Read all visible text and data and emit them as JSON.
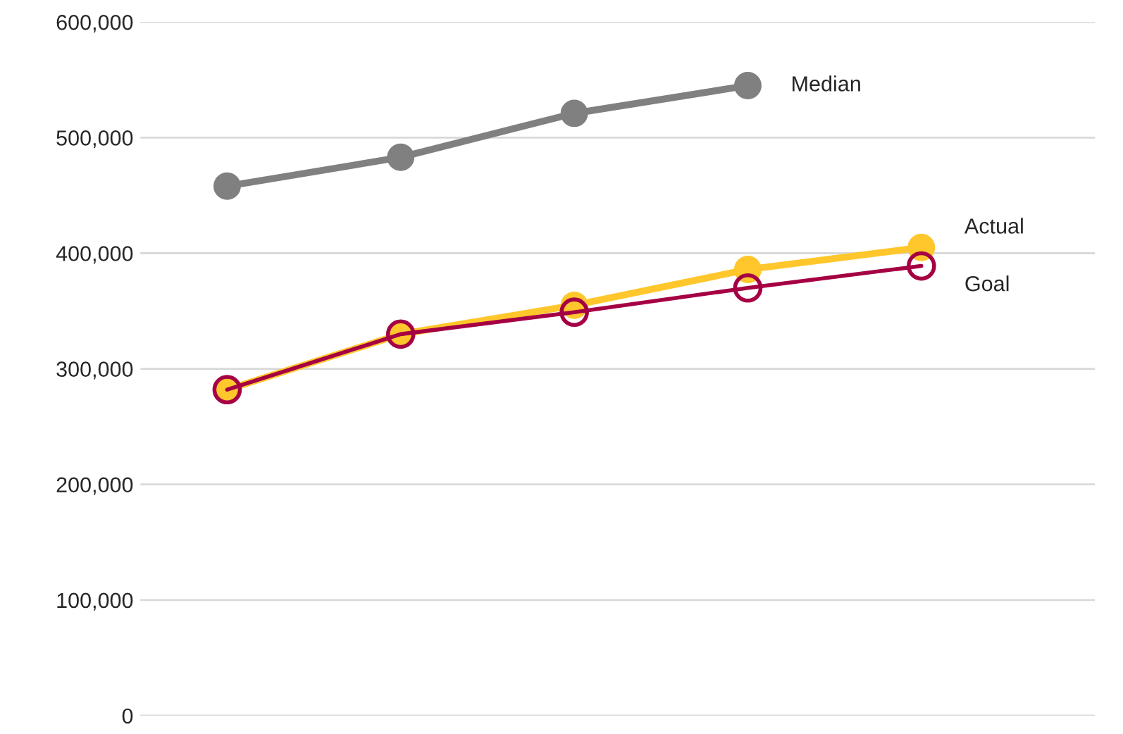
{
  "chart_data": {
    "type": "line",
    "categories": [
      null,
      null,
      null,
      null,
      null
    ],
    "series": [
      {
        "name": "Median",
        "color": "#808080",
        "values": [
          458000,
          483000,
          521000,
          545000,
          null
        ]
      },
      {
        "name": "Actual",
        "color": "#ffc72c",
        "values": [
          282000,
          330000,
          355000,
          386000,
          405000
        ]
      },
      {
        "name": "Goal",
        "color": "#a50044",
        "values": [
          282000,
          330000,
          349000,
          370000,
          389000
        ]
      }
    ],
    "ylim": [
      0,
      600000
    ],
    "yticks": [
      {
        "value": 0,
        "label": "0"
      },
      {
        "value": 100000,
        "label": "100,000"
      },
      {
        "value": 200000,
        "label": "200,000"
      },
      {
        "value": 300000,
        "label": "300,000"
      },
      {
        "value": 400000,
        "label": "400,000"
      },
      {
        "value": 500000,
        "label": "500,000"
      },
      {
        "value": 600000,
        "label": "600,000"
      }
    ],
    "grid": "y",
    "marker": "circle",
    "legend": false
  }
}
